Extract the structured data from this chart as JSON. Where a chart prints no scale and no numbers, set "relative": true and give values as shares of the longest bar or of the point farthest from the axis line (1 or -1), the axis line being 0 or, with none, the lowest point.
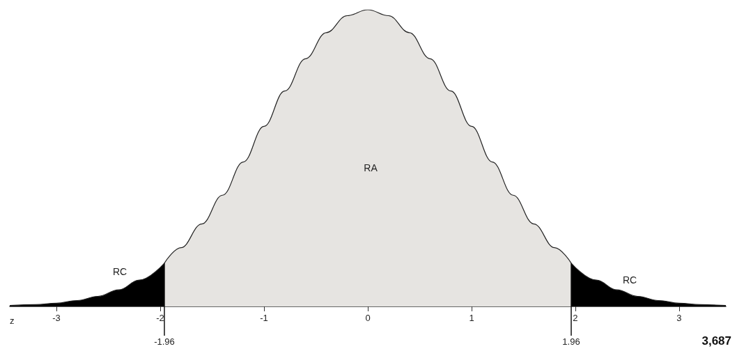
{
  "chart_data": {
    "type": "area",
    "relative": true,
    "xlabel": "z",
    "xlim": [
      -3.45,
      3.45
    ],
    "xticks": [
      -3,
      -2,
      -1,
      0,
      1,
      2,
      3
    ],
    "series": [
      {
        "color": "#000000",
        "x": [
          -3.45,
          -3.2,
          -3.0,
          -2.8,
          -2.6,
          -2.4,
          -2.2,
          -1.96
        ],
        "values": [
          0.003,
          0.006,
          0.011,
          0.02,
          0.034,
          0.056,
          0.089,
          0.146
        ]
      },
      {
        "color": "#e6e4e1",
        "x": [
          -1.96,
          -1.8,
          -1.6,
          -1.4,
          -1.2,
          -1.0,
          -0.8,
          -0.6,
          -0.4,
          -0.2,
          0,
          0.2,
          0.4,
          0.6,
          0.8,
          1.0,
          1.2,
          1.4,
          1.6,
          1.8,
          1.96
        ],
        "values": [
          0.146,
          0.198,
          0.278,
          0.375,
          0.487,
          0.607,
          0.726,
          0.835,
          0.923,
          0.98,
          1,
          0.98,
          0.923,
          0.835,
          0.726,
          0.607,
          0.487,
          0.375,
          0.278,
          0.198,
          0.146
        ]
      },
      {
        "color": "#000000",
        "x": [
          1.96,
          2.2,
          2.4,
          2.6,
          2.8,
          3.0,
          3.2,
          3.45
        ],
        "values": [
          0.146,
          0.089,
          0.056,
          0.034,
          0.02,
          0.011,
          0.006,
          0.003
        ]
      }
    ],
    "ref_lines": [
      {
        "axis": "x",
        "value": -1.96,
        "label": "-1.96"
      },
      {
        "axis": "x",
        "value": 1.96,
        "label": "1.96"
      }
    ],
    "annotations": [
      "RA",
      "RC",
      "RC",
      "3,687"
    ]
  }
}
